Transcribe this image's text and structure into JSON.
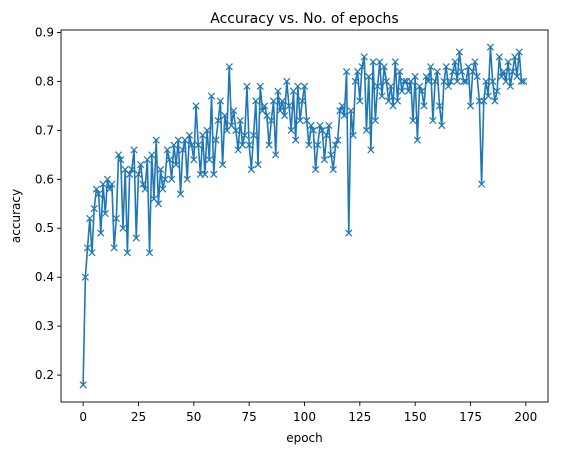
{
  "chart_data": {
    "type": "line",
    "title": "Accuracy vs. No. of epochs",
    "xlabel": "epoch",
    "ylabel": "accuracy",
    "xlim": [
      -10,
      210
    ],
    "ylim": [
      0.145,
      0.905
    ],
    "xticks": [
      0,
      25,
      50,
      75,
      100,
      125,
      150,
      175,
      200
    ],
    "yticks": [
      0.2,
      0.3,
      0.4,
      0.5,
      0.6,
      0.7,
      0.8,
      0.9
    ],
    "grid": false,
    "marker": "x",
    "color": "#1f77b4",
    "series": [
      {
        "x": [
          0,
          1,
          2,
          3,
          4,
          5,
          6,
          7,
          8,
          9,
          10,
          11,
          12,
          13,
          14,
          15,
          16,
          17,
          18,
          19,
          20,
          21,
          22,
          23,
          24,
          25,
          26,
          27,
          28,
          29,
          30,
          31,
          32,
          33,
          34,
          35,
          36,
          37,
          38,
          39,
          40,
          41,
          42,
          43,
          44,
          45,
          46,
          47,
          48,
          49,
          50,
          51,
          52,
          53,
          54,
          55,
          56,
          57,
          58,
          59,
          60,
          61,
          62,
          63,
          64,
          65,
          66,
          67,
          68,
          69,
          70,
          71,
          72,
          73,
          74,
          75,
          76,
          77,
          78,
          79,
          80,
          81,
          82,
          83,
          84,
          85,
          86,
          87,
          88,
          89,
          90,
          91,
          92,
          93,
          94,
          95,
          96,
          97,
          98,
          99,
          100,
          101,
          102,
          103,
          104,
          105,
          106,
          107,
          108,
          109,
          110,
          111,
          112,
          113,
          114,
          115,
          116,
          117,
          118,
          119,
          120,
          121,
          122,
          123,
          124,
          125,
          126,
          127,
          128,
          129,
          130,
          131,
          132,
          133,
          134,
          135,
          136,
          137,
          138,
          139,
          140,
          141,
          142,
          143,
          144,
          145,
          146,
          147,
          148,
          149,
          150,
          151,
          152,
          153,
          154,
          155,
          156,
          157,
          158,
          159,
          160,
          161,
          162,
          163,
          164,
          165,
          166,
          167,
          168,
          169,
          170,
          171,
          172,
          173,
          174,
          175,
          176,
          177,
          178,
          179,
          180,
          181,
          182,
          183,
          184,
          185,
          186,
          187,
          188,
          189,
          190,
          191,
          192,
          193,
          194,
          195,
          196,
          197,
          198,
          199
        ],
        "values": [
          0.18,
          0.4,
          0.46,
          0.52,
          0.45,
          0.54,
          0.58,
          0.57,
          0.49,
          0.59,
          0.53,
          0.6,
          0.58,
          0.59,
          0.46,
          0.52,
          0.65,
          0.64,
          0.5,
          0.62,
          0.45,
          0.61,
          0.62,
          0.66,
          0.48,
          0.61,
          0.63,
          0.59,
          0.58,
          0.64,
          0.45,
          0.65,
          0.56,
          0.68,
          0.55,
          0.62,
          0.58,
          0.6,
          0.66,
          0.64,
          0.6,
          0.67,
          0.63,
          0.68,
          0.57,
          0.66,
          0.68,
          0.6,
          0.69,
          0.67,
          0.64,
          0.75,
          0.67,
          0.61,
          0.69,
          0.61,
          0.7,
          0.64,
          0.77,
          0.61,
          0.68,
          0.72,
          0.76,
          0.63,
          0.73,
          0.7,
          0.83,
          0.71,
          0.74,
          0.7,
          0.66,
          0.72,
          0.67,
          0.69,
          0.79,
          0.67,
          0.62,
          0.69,
          0.76,
          0.63,
          0.79,
          0.74,
          0.75,
          0.73,
          0.67,
          0.72,
          0.76,
          0.65,
          0.78,
          0.74,
          0.76,
          0.73,
          0.8,
          0.75,
          0.7,
          0.78,
          0.68,
          0.79,
          0.72,
          0.76,
          0.79,
          0.72,
          0.67,
          0.71,
          0.7,
          0.62,
          0.67,
          0.71,
          0.7,
          0.64,
          0.69,
          0.71,
          0.65,
          0.62,
          0.67,
          0.68,
          0.74,
          0.75,
          0.73,
          0.82,
          0.49,
          0.74,
          0.69,
          0.8,
          0.82,
          0.76,
          0.83,
          0.85,
          0.7,
          0.81,
          0.66,
          0.84,
          0.72,
          0.79,
          0.84,
          0.77,
          0.83,
          0.8,
          0.76,
          0.79,
          0.75,
          0.84,
          0.76,
          0.82,
          0.78,
          0.8,
          0.8,
          0.78,
          0.8,
          0.72,
          0.81,
          0.68,
          0.79,
          0.78,
          0.75,
          0.81,
          0.8,
          0.83,
          0.72,
          0.8,
          0.82,
          0.75,
          0.71,
          0.8,
          0.83,
          0.79,
          0.8,
          0.82,
          0.84,
          0.8,
          0.86,
          0.82,
          0.8,
          0.8,
          0.83,
          0.75,
          0.82,
          0.84,
          0.81,
          0.76,
          0.59,
          0.76,
          0.8,
          0.77,
          0.87,
          0.8,
          0.76,
          0.78,
          0.85,
          0.81,
          0.82,
          0.8,
          0.84,
          0.79,
          0.82,
          0.85,
          0.81,
          0.86,
          0.8,
          0.8
        ]
      }
    ]
  }
}
